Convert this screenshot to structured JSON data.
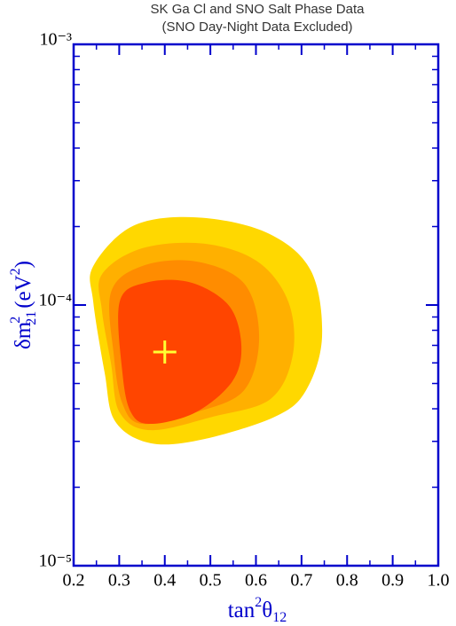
{
  "chart_data": {
    "type": "contour",
    "title": "SK Ga Cl and SNO Salt Phase Data",
    "subtitle": "(SNO Day-Night Data Excluded)",
    "xlabel": {
      "base": "tan",
      "sup": "2",
      "symbol": "θ",
      "sub": "12"
    },
    "ylabel": {
      "base": "δm",
      "sup": "2",
      "sub": "21",
      "unit": "(eV",
      "unit_sup": "2",
      "close": ")"
    },
    "xlim": [
      0.2,
      1.0
    ],
    "xticks": [
      0.2,
      0.3,
      0.4,
      0.5,
      0.6,
      0.7,
      0.8,
      0.9,
      {
        "value": 1,
        "label": "1.0"
      }
    ],
    "ylim": [
      1e-05,
      0.001
    ],
    "ylog": true,
    "yticks": [
      {
        "value": 1e-05,
        "label": "10⁻⁵"
      },
      {
        "value": 0.0001,
        "label": "10⁻⁴"
      },
      {
        "value": 0.001,
        "label": "10⁻³"
      }
    ],
    "axis_color": "#0000cc",
    "series": [
      {
        "color": "#ffd800",
        "x": [
          0.243,
          0.33,
          0.467,
          0.622,
          0.72,
          0.745,
          0.71,
          0.642,
          0.486,
          0.369,
          0.291,
          0.268,
          0.243
        ],
        "y": [
          0.000141,
          0.000201,
          0.000217,
          0.00019,
          0.000136,
          7.55e-05,
          4.71e-05,
          3.73e-05,
          3.06e-05,
          2.95e-05,
          3.58e-05,
          5.51e-05,
          0.000103
        ]
      },
      {
        "color": "#ffb000",
        "x": [
          0.262,
          0.35,
          0.486,
          0.603,
          0.671,
          0.681,
          0.632,
          0.506,
          0.369,
          0.301,
          0.282,
          0.262
        ],
        "y": [
          0.000131,
          0.000165,
          0.000172,
          0.000147,
          0.000103,
          6.46e-05,
          4.36e-05,
          3.73e-05,
          3.31e-05,
          3.87e-05,
          5.97e-05,
          9.55e-05
        ]
      },
      {
        "color": "#ff8c00",
        "x": [
          0.282,
          0.35,
          0.467,
          0.574,
          0.607,
          0.574,
          0.467,
          0.35,
          0.307,
          0.288
        ],
        "y": [
          0.000112,
          0.000141,
          0.000147,
          0.000121,
          7.55e-05,
          4.71e-05,
          3.87e-05,
          3.5e-05,
          4.19e-05,
          6.46e-05
        ]
      },
      {
        "color": "#ff4500",
        "x": [
          0.301,
          0.36,
          0.457,
          0.541,
          0.568,
          0.548,
          0.467,
          0.369,
          0.326,
          0.307
        ],
        "y": [
          0.000103,
          0.000122,
          0.000122,
          9.93e-05,
          6.98e-05,
          5.09e-05,
          3.87e-05,
          3.5e-05,
          3.87e-05,
          5.51e-05
        ]
      }
    ],
    "best_fit": {
      "x": 0.4,
      "y": 6.6e-05,
      "color": "#ffff33"
    }
  }
}
